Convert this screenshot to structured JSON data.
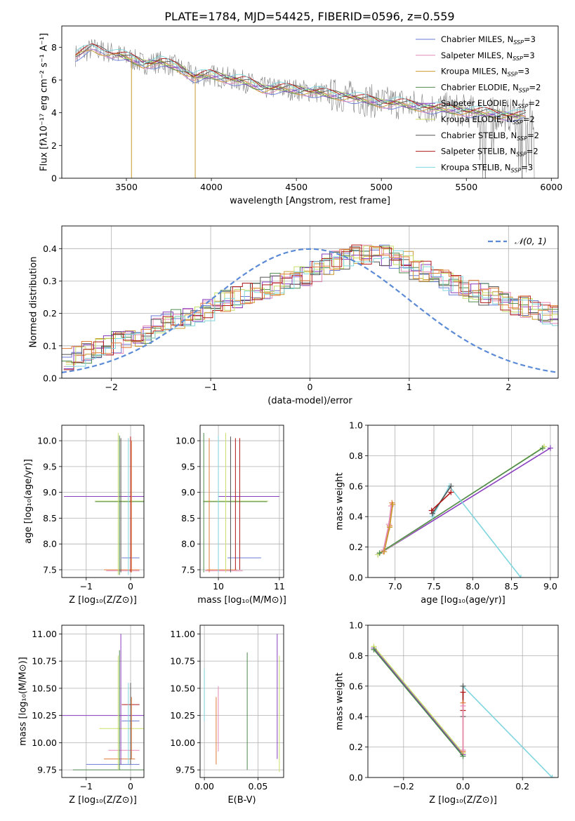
{
  "figure": {
    "title": "PLATE=1784, MJD=54425, FIBERID=0596, z=0.559"
  },
  "colors": {
    "Chabrier MILES": "#6a7bd6",
    "Salpeter MILES": "#e58ab8",
    "Kroupa MILES": "#c99a2e",
    "Chabrier ELODIE": "#4f8a4f",
    "Salpeter ELODIE": "#8a3fbf",
    "Kroupa ELODIE": "#c8e06a",
    "Chabrier STELIB": "#555555",
    "Salpeter STELIB": "#b01818",
    "Kroupa STELIB": "#7fd6de",
    "orange": "#e07b3a",
    "normal": "#5b8ad6"
  },
  "chart_data": [
    {
      "id": "spectrum",
      "type": "line",
      "title": "PLATE=1784, MJD=54425, FIBERID=0596, z=0.559",
      "xlabel": "wavelength [Angstrom, rest frame]",
      "ylabel": "Flux [fλ10⁻¹⁷ erg cm⁻² s⁻¹ A⁻¹]",
      "xlim": [
        3120,
        6040
      ],
      "ylim": [
        0,
        9.3
      ],
      "xticks": [
        3500,
        4000,
        4500,
        5000,
        5500,
        6000
      ],
      "yticks": [
        0,
        2,
        4,
        6,
        8
      ],
      "legend_position": "top-right",
      "legend": [
        {
          "text": "Chabrier MILES, N",
          "sub": "SSP",
          "after": "=3"
        },
        {
          "text": "Salpeter MILES, N",
          "sub": "SSP",
          "after": "=3"
        },
        {
          "text": "Kroupa MILES, N",
          "sub": "SSP",
          "after": "=3"
        },
        {
          "text": "Chabrier ELODIE, N",
          "sub": "SSP",
          "after": "=2"
        },
        {
          "text": "Salpeter ELODIE, N",
          "sub": "SSP",
          "after": "=2"
        },
        {
          "text": "Kroupa ELODIE, N",
          "sub": "SSP",
          "after": "=2"
        },
        {
          "text": "Chabrier STELIB, N",
          "sub": "SSP",
          "after": "=2"
        },
        {
          "text": "Salpeter STELIB, N",
          "sub": "SSP",
          "after": "=2"
        },
        {
          "text": "Kroupa STELIB, N",
          "sub": "SSP",
          "after": "=3"
        }
      ],
      "continuum": [
        [
          3200,
          7.5
        ],
        [
          3300,
          7.9
        ],
        [
          3400,
          7.7
        ],
        [
          3500,
          7.4
        ],
        [
          3600,
          7.0
        ],
        [
          3700,
          7.1
        ],
        [
          3800,
          6.8
        ],
        [
          3900,
          6.2
        ],
        [
          4000,
          6.3
        ],
        [
          4100,
          6.1
        ],
        [
          4200,
          5.9
        ],
        [
          4300,
          5.5
        ],
        [
          4400,
          5.5
        ],
        [
          4500,
          5.4
        ],
        [
          4600,
          5.3
        ],
        [
          4700,
          5.1
        ],
        [
          4800,
          5.0
        ],
        [
          4900,
          4.8
        ],
        [
          5000,
          4.6
        ],
        [
          5100,
          4.6
        ],
        [
          5200,
          4.4
        ],
        [
          5300,
          4.3
        ],
        [
          5400,
          4.2
        ],
        [
          5500,
          4.1
        ],
        [
          5600,
          4.0
        ],
        [
          5700,
          3.9
        ],
        [
          5800,
          3.8
        ],
        [
          5900,
          3.8
        ]
      ],
      "deep_absorptions": [
        3530,
        3905
      ],
      "grid": false
    },
    {
      "id": "residuals",
      "type": "line",
      "xlabel": "(data-model)/error",
      "ylabel": "Normed distribution",
      "xlim": [
        -2.5,
        2.5
      ],
      "ylim": [
        0,
        0.47
      ],
      "xticks": [
        -2,
        -1,
        0,
        1,
        2
      ],
      "yticks": [
        0.0,
        0.1,
        0.2,
        0.3,
        0.4
      ],
      "legend": [
        {
          "text": "𝒩(0, 1)"
        }
      ],
      "legend_position": "top-right",
      "bin_width": 0.1,
      "histogram_envelope": [
        0.06,
        0.07,
        0.08,
        0.09,
        0.1,
        0.11,
        0.12,
        0.13,
        0.14,
        0.16,
        0.17,
        0.18,
        0.19,
        0.2,
        0.21,
        0.23,
        0.24,
        0.25,
        0.26,
        0.27,
        0.28,
        0.29,
        0.3,
        0.31,
        0.32,
        0.33,
        0.35,
        0.36,
        0.37,
        0.38,
        0.38,
        0.39,
        0.38,
        0.37,
        0.36,
        0.34,
        0.33,
        0.31,
        0.3,
        0.29,
        0.28,
        0.27,
        0.26,
        0.25,
        0.24,
        0.23,
        0.22,
        0.21,
        0.2,
        0.19,
        0.19,
        0.18,
        0.17,
        0.16,
        0.15,
        0.14,
        0.13,
        0.12,
        0.11,
        0.1,
        0.09,
        0.08,
        0.075,
        0.07,
        0.065,
        0.06,
        0.055,
        0.05,
        0.05,
        0.045,
        0.04,
        0.04,
        0.035,
        0.035,
        0.03,
        0.03,
        0.03,
        0.03,
        0.03,
        0.03
      ],
      "normal_mean": 0,
      "normal_sigma": 1,
      "grid": true
    },
    {
      "id": "age-vs-Z",
      "type": "scatter",
      "xlabel": "Z [log₁₀(Z/Z⊙)]",
      "ylabel": "age  [log₁₀(age/yr)]",
      "xlim": [
        -1.55,
        0.3
      ],
      "ylim": [
        7.35,
        10.3
      ],
      "xticks": [
        -1,
        0
      ],
      "yticks": [
        7.5,
        8.0,
        8.5,
        9.0,
        9.5,
        10.0
      ],
      "grid": true,
      "hlines": [
        {
          "y": 8.92,
          "x0": -1.5,
          "x1": 0.3,
          "c": "Salpeter ELODIE"
        },
        {
          "y": 8.83,
          "x0": -0.8,
          "x1": 0.3,
          "c": "Kroupa ELODIE"
        },
        {
          "y": 8.82,
          "x0": -0.8,
          "x1": 0.3,
          "c": "Chabrier ELODIE"
        },
        {
          "y": 7.73,
          "x0": -0.2,
          "x1": 0.2,
          "c": "Chabrier MILES"
        },
        {
          "y": 7.5,
          "x0": -0.6,
          "x1": 0.2,
          "c": "orange"
        },
        {
          "y": 7.48,
          "x0": -0.55,
          "x1": 0.2,
          "c": "Salpeter MILES"
        }
      ],
      "vlines": [
        {
          "x": -0.28,
          "y0": 7.4,
          "y1": 10.15,
          "c": "Kroupa ELODIE"
        },
        {
          "x": -0.25,
          "y0": 7.4,
          "y1": 10.1,
          "c": "Chabrier ELODIE"
        },
        {
          "x": -0.22,
          "y0": 7.45,
          "y1": 10.05,
          "c": "Chabrier STELIB"
        },
        {
          "x": -0.05,
          "y0": 7.4,
          "y1": 10.05,
          "c": "Kroupa STELIB"
        },
        {
          "x": 0.0,
          "y0": 7.45,
          "y1": 10.08,
          "c": "Salpeter STELIB"
        },
        {
          "x": 0.02,
          "y0": 7.45,
          "y1": 10.0,
          "c": "orange"
        }
      ]
    },
    {
      "id": "age-vs-mass",
      "type": "scatter",
      "xlabel": "mass [log₁₀(M/M⊙)]",
      "ylabel": "",
      "xlim": [
        9.7,
        11.07
      ],
      "ylim": [
        7.35,
        10.3
      ],
      "xticks": [
        10,
        11
      ],
      "yticks": [
        7.5,
        8.0,
        8.5,
        9.0,
        9.5,
        10.0
      ],
      "grid": true,
      "hlines": [
        {
          "y": 8.92,
          "x0": 10.0,
          "x1": 11.0,
          "c": "Salpeter ELODIE"
        },
        {
          "y": 8.83,
          "x0": 9.75,
          "x1": 10.82,
          "c": "Kroupa ELODIE"
        },
        {
          "y": 8.82,
          "x0": 9.75,
          "x1": 10.8,
          "c": "Chabrier ELODIE"
        },
        {
          "y": 7.73,
          "x0": 10.15,
          "x1": 10.7,
          "c": "Chabrier MILES"
        },
        {
          "y": 7.5,
          "x0": 9.8,
          "x1": 10.3,
          "c": "orange"
        },
        {
          "y": 7.48,
          "x0": 9.78,
          "x1": 10.4,
          "c": "Salpeter MILES"
        }
      ],
      "vlines": [
        {
          "x": 9.76,
          "y0": 7.45,
          "y1": 10.15,
          "c": "Chabrier ELODIE"
        },
        {
          "x": 9.85,
          "y0": 7.45,
          "y1": 10.05,
          "c": "orange"
        },
        {
          "x": 10.0,
          "y0": 7.45,
          "y1": 10.1,
          "c": "Kroupa STELIB"
        },
        {
          "x": 10.12,
          "y0": 7.45,
          "y1": 10.15,
          "c": "Kroupa ELODIE"
        },
        {
          "x": 10.2,
          "y0": 7.45,
          "y1": 10.08,
          "c": "Chabrier STELIB"
        },
        {
          "x": 10.28,
          "y0": 7.5,
          "y1": 10.05,
          "c": "Salpeter STELIB"
        },
        {
          "x": 10.35,
          "y0": 7.5,
          "y1": 10.05,
          "c": "Salpeter STELIB"
        }
      ]
    },
    {
      "id": "massweight-vs-age",
      "type": "line",
      "xlabel": "age  [log₁₀(age/yr)]",
      "ylabel": "mass weight",
      "xlim": [
        6.65,
        9.1
      ],
      "ylim": [
        0,
        1
      ],
      "xticks": [
        7.0,
        7.5,
        8.0,
        8.5,
        9.0
      ],
      "yticks": [
        0.0,
        0.2,
        0.4,
        0.6,
        0.8,
        1.0
      ],
      "grid": true,
      "series": [
        {
          "c": "Salpeter ELODIE",
          "x": [
            6.78,
            9.0
          ],
          "y": [
            0.15,
            0.85
          ]
        },
        {
          "c": "Kroupa ELODIE",
          "x": [
            6.78,
            8.92
          ],
          "y": [
            0.15,
            0.86
          ]
        },
        {
          "c": "Chabrier ELODIE",
          "x": [
            6.8,
            8.9
          ],
          "y": [
            0.16,
            0.85
          ]
        },
        {
          "c": "Kroupa STELIB",
          "x": [
            7.48,
            7.7,
            8.62
          ],
          "y": [
            0.4,
            0.6,
            0.0
          ]
        },
        {
          "c": "Chabrier STELIB",
          "x": [
            7.48,
            7.72
          ],
          "y": [
            0.42,
            0.6
          ]
        },
        {
          "c": "Salpeter STELIB",
          "x": [
            7.47,
            7.72
          ],
          "y": [
            0.44,
            0.56
          ]
        },
        {
          "c": "orange",
          "x": [
            6.85,
            6.93,
            6.96
          ],
          "y": [
            0.17,
            0.34,
            0.49
          ]
        },
        {
          "c": "Salpeter MILES",
          "x": [
            6.85,
            6.92,
            6.95
          ],
          "y": [
            0.18,
            0.35,
            0.47
          ]
        },
        {
          "c": "Kroupa MILES",
          "x": [
            6.86,
            6.93,
            6.97
          ],
          "y": [
            0.17,
            0.33,
            0.48
          ]
        }
      ]
    },
    {
      "id": "mass-vs-Z",
      "type": "scatter",
      "xlabel": "Z [log₁₀(Z/Z⊙)]",
      "ylabel": "mass [log₁₀(M/M⊙)]",
      "xlim": [
        -1.55,
        0.3
      ],
      "ylim": [
        9.68,
        11.08
      ],
      "xticks": [
        -1,
        0
      ],
      "yticks": [
        9.75,
        10.0,
        10.25,
        10.5,
        10.75,
        11.0
      ],
      "grid": true,
      "hlines": [
        {
          "y": 10.25,
          "x0": -1.55,
          "x1": 0.3,
          "c": "Salpeter ELODIE"
        },
        {
          "y": 10.35,
          "x0": -0.2,
          "x1": 0.2,
          "c": "Salpeter STELIB"
        },
        {
          "y": 10.2,
          "x0": -0.2,
          "x1": 0.2,
          "c": "Chabrier MILES"
        },
        {
          "y": 10.13,
          "x0": -0.7,
          "x1": 0.3,
          "c": "Kroupa ELODIE"
        },
        {
          "y": 9.93,
          "x0": -0.5,
          "x1": 0.2,
          "c": "Salpeter MILES"
        },
        {
          "y": 9.85,
          "x0": -0.6,
          "x1": 0.1,
          "c": "orange"
        },
        {
          "y": 9.8,
          "x0": -1.0,
          "x1": 0.2,
          "c": "Chabrier MILES"
        },
        {
          "y": 9.75,
          "x0": -1.3,
          "x1": 0.3,
          "c": "Chabrier ELODIE"
        }
      ],
      "vlines": [
        {
          "x": -0.28,
          "y0": 9.75,
          "y1": 10.8,
          "c": "Kroupa ELODIE"
        },
        {
          "x": -0.25,
          "y0": 9.75,
          "y1": 10.85,
          "c": "Chabrier ELODIE"
        },
        {
          "x": -0.22,
          "y0": 9.8,
          "y1": 11.0,
          "c": "Salpeter ELODIE"
        },
        {
          "x": -0.05,
          "y0": 9.8,
          "y1": 10.55,
          "c": "Kroupa STELIB"
        },
        {
          "x": 0.0,
          "y0": 9.8,
          "y1": 10.55,
          "c": "Chabrier STELIB"
        },
        {
          "x": 0.02,
          "y0": 9.85,
          "y1": 10.42,
          "c": "orange"
        }
      ]
    },
    {
      "id": "mass-vs-ebv",
      "type": "scatter",
      "xlabel": "E(B-V)",
      "ylabel": "",
      "xlim": [
        -0.004,
        0.074
      ],
      "ylim": [
        9.68,
        11.08
      ],
      "xticks": [
        0.0,
        0.05
      ],
      "yticks": [
        9.75,
        10.0,
        10.25,
        10.5,
        10.75,
        11.0
      ],
      "grid": true,
      "vlines": [
        {
          "x": 0.0,
          "y0": 10.2,
          "y1": 10.68,
          "c": "Kroupa STELIB"
        },
        {
          "x": 0.011,
          "y0": 9.8,
          "y1": 10.42,
          "c": "orange"
        },
        {
          "x": 0.013,
          "y0": 9.92,
          "y1": 10.52,
          "c": "Salpeter MILES"
        },
        {
          "x": 0.04,
          "y0": 9.75,
          "y1": 10.83,
          "c": "Chabrier ELODIE"
        },
        {
          "x": 0.068,
          "y0": 9.85,
          "y1": 11.0,
          "c": "Salpeter ELODIE"
        },
        {
          "x": 0.07,
          "y0": 9.73,
          "y1": 10.8,
          "c": "Kroupa ELODIE"
        }
      ]
    },
    {
      "id": "massweight-vs-Z",
      "type": "line",
      "xlabel": "Z [log₁₀(Z/Z⊙)]",
      "ylabel": "mass weight",
      "xlim": [
        -0.32,
        0.32
      ],
      "ylim": [
        0,
        1
      ],
      "xticks": [
        -0.2,
        0.0,
        0.2
      ],
      "yticks": [
        0.0,
        0.2,
        0.4,
        0.6,
        0.8,
        1.0
      ],
      "grid": true,
      "series": [
        {
          "c": "Salpeter ELODIE",
          "x": [
            -0.3,
            0.0
          ],
          "y": [
            0.85,
            0.15
          ]
        },
        {
          "c": "Kroupa ELODIE",
          "x": [
            -0.3,
            0.0
          ],
          "y": [
            0.86,
            0.16
          ]
        },
        {
          "c": "Chabrier ELODIE",
          "x": [
            -0.3,
            0.0
          ],
          "y": [
            0.84,
            0.14
          ]
        },
        {
          "c": "Kroupa STELIB",
          "x": [
            0.0,
            0.3
          ],
          "y": [
            0.6,
            0.0
          ]
        },
        {
          "c": "Chabrier STELIB",
          "x": [
            0.0,
            0.0
          ],
          "y": [
            0.4,
            0.6
          ]
        },
        {
          "c": "Salpeter STELIB",
          "x": [
            0.0,
            0.0
          ],
          "y": [
            0.44,
            0.56
          ]
        },
        {
          "c": "orange",
          "x": [
            0.0,
            0.0
          ],
          "y": [
            0.17,
            0.49
          ]
        },
        {
          "c": "Salpeter MILES",
          "x": [
            0.0,
            0.0
          ],
          "y": [
            0.18,
            0.47
          ]
        }
      ]
    }
  ]
}
